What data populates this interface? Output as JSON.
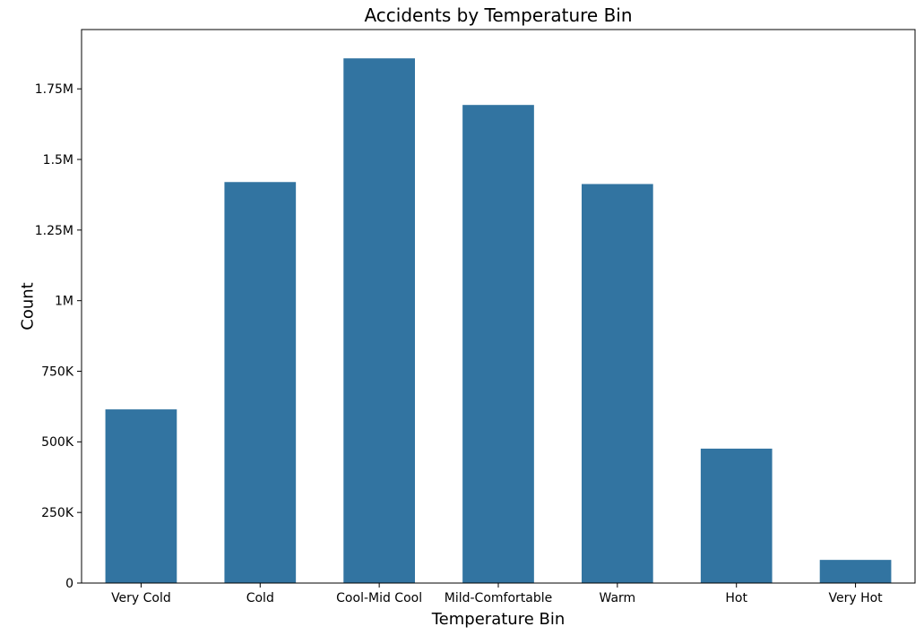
{
  "chart_data": {
    "type": "bar",
    "title": "Accidents by Temperature Bin",
    "xlabel": "Temperature Bin",
    "ylabel": "Count",
    "categories": [
      "Very Cold",
      "Cold",
      "Cool-Mid Cool",
      "Mild-Comfortable",
      "Warm",
      "Hot",
      "Very Hot"
    ],
    "values": [
      615000,
      1420000,
      1858000,
      1693000,
      1413000,
      476000,
      82000
    ],
    "ylim": [
      0,
      1960000
    ],
    "yticks": [
      0,
      250000,
      500000,
      750000,
      1000000,
      1250000,
      1500000,
      1750000
    ],
    "ytick_labels": [
      "0",
      "250K",
      "500K",
      "750K",
      "1M",
      "1.25M",
      "1.5M",
      "1.75M"
    ],
    "bar_color": "#3274a1",
    "grid": false,
    "legend": "none"
  }
}
